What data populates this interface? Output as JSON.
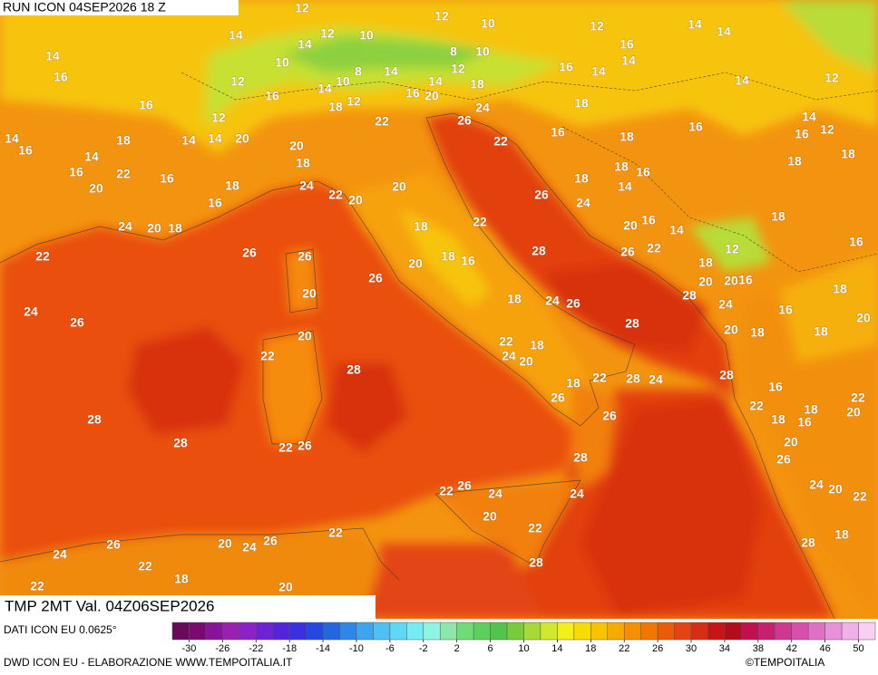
{
  "header": {
    "run": "RUN ICON 04SEP2026 18 Z",
    "field": "TMP 2MT Val. 04Z06SEP2026"
  },
  "footer": {
    "source": "DATI ICON EU 0.0625°",
    "credit": "DWD ICON EU - ELABORAZIONE WWW.TEMPOITALIA.IT",
    "copyright": "©TEMPOITALIA"
  },
  "colorbar": {
    "lim": [
      -32,
      52
    ],
    "ticks": [
      -30,
      -26,
      -22,
      -18,
      -14,
      -10,
      -6,
      -2,
      2,
      6,
      10,
      14,
      18,
      22,
      26,
      30,
      34,
      38,
      42,
      46,
      50
    ],
    "colors": [
      "#6a0a5a",
      "#7a0a70",
      "#8a129a",
      "#9a20b4",
      "#8a22c8",
      "#6e22d2",
      "#5424da",
      "#3a30e0",
      "#2448e0",
      "#2266e2",
      "#2e86e8",
      "#3ea4ee",
      "#4ec0f2",
      "#5ed8f4",
      "#74ecf4",
      "#8ef4e4",
      "#8ce8a8",
      "#70dc78",
      "#5cd05c",
      "#52c44a",
      "#78cc3c",
      "#a6da34",
      "#d2e82c",
      "#f2f018",
      "#f8dc00",
      "#f8c400",
      "#f8aa00",
      "#f69000",
      "#f27600",
      "#ec5c08",
      "#e44414",
      "#d82c14",
      "#c81414",
      "#b40c1c",
      "#c01050",
      "#c82070",
      "#d03890",
      "#d850ac",
      "#e070c4",
      "#e890d8",
      "#f0b0e8",
      "#f8d0f2"
    ]
  },
  "map": {
    "labels": [
      12,
      12,
      10,
      12,
      14,
      14,
      14,
      14,
      12,
      10,
      14,
      16,
      10,
      8,
      10,
      8,
      10,
      14,
      14,
      12,
      16,
      14,
      14,
      16,
      12,
      16,
      12,
      18,
      16,
      20,
      14,
      18,
      14,
      12,
      16,
      12,
      22,
      26,
      24,
      18,
      14,
      14,
      16,
      18,
      14,
      14,
      20,
      20,
      22,
      16,
      18,
      16,
      16,
      12,
      14,
      18,
      16,
      22,
      20,
      16,
      18,
      16,
      18,
      18,
      18,
      24,
      22,
      20,
      20,
      18,
      14,
      26,
      24,
      16,
      24,
      20,
      18,
      18,
      22,
      20,
      16,
      14,
      18,
      16,
      22,
      26,
      26,
      28,
      26,
      22,
      12,
      18,
      20,
      18,
      16,
      26,
      20,
      20,
      20,
      16,
      28,
      24,
      18,
      24,
      26,
      18,
      24,
      26,
      16,
      20,
      28,
      20,
      18,
      18,
      20,
      22,
      18,
      24,
      20,
      22,
      28,
      28,
      28,
      24,
      22,
      18,
      26,
      16,
      22,
      20,
      22,
      18,
      16,
      18,
      28,
      26,
      28,
      22,
      26,
      20,
      26,
      28,
      24,
      20,
      22,
      24,
      22,
      26,
      24,
      20,
      22,
      18,
      22,
      26,
      20,
      24,
      26,
      28,
      24,
      22,
      18,
      28,
      22,
      20
    ]
  }
}
